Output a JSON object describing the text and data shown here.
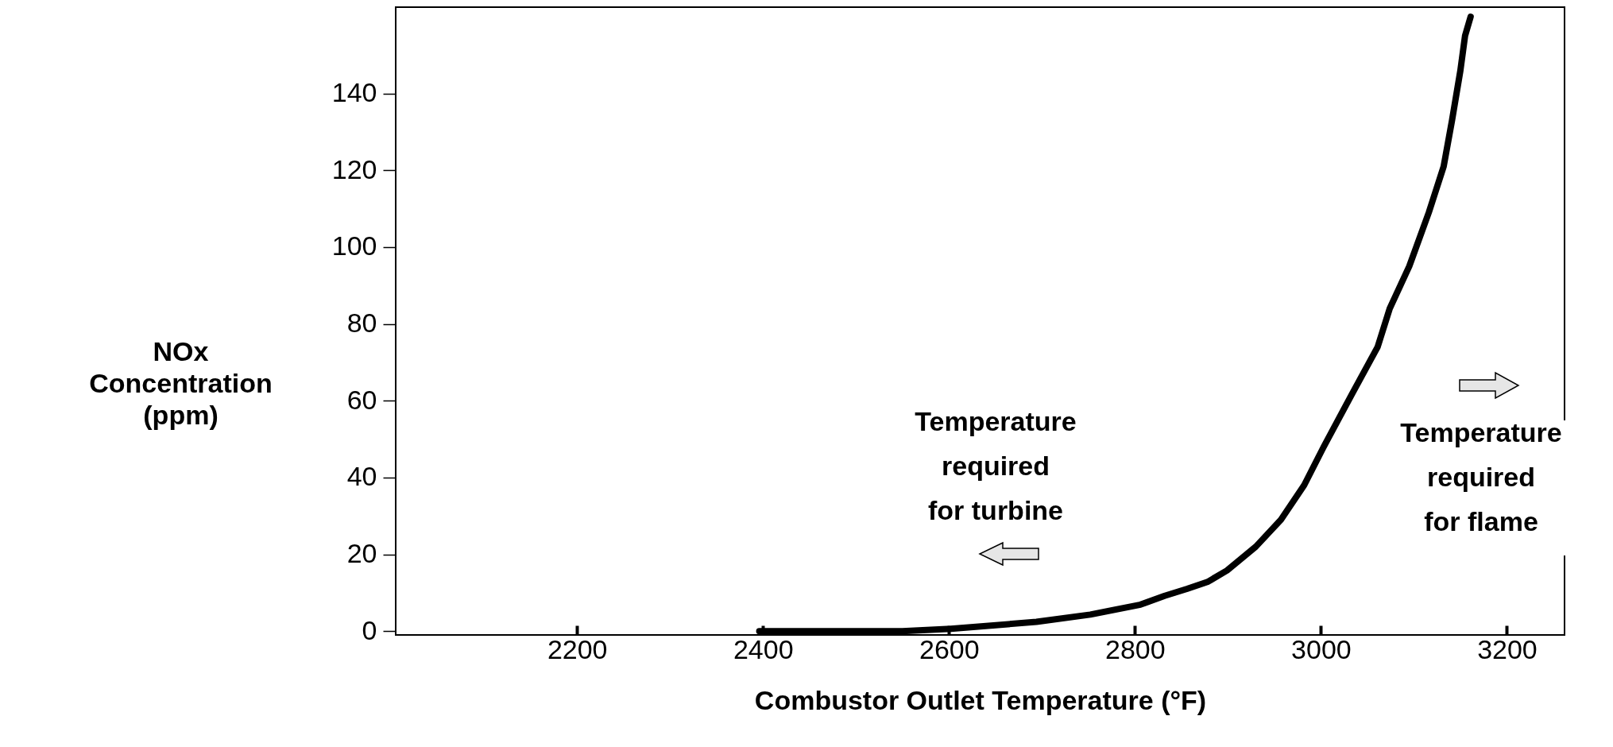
{
  "chart_data": {
    "type": "line",
    "xlabel": "Combustor Outlet    Temperature (°F)",
    "ylabel": "NOx\nConcentration\n(ppm)",
    "x": [
      2396,
      2437,
      2550,
      2602,
      2694,
      2752,
      2806,
      2832,
      2856,
      2878,
      2899,
      2930,
      2957,
      2982,
      3003,
      3034,
      3061,
      3074,
      3095,
      3116,
      3132,
      3141,
      3150,
      3155,
      3161
    ],
    "series": [
      {
        "color": "#000000",
        "values": [
          0,
          0,
          0,
          0.6,
          2.4,
          4.3,
          6.9,
          9.2,
          11,
          12.8,
          15.8,
          22,
          29,
          38,
          48,
          62,
          74,
          84,
          95,
          109,
          121,
          133,
          146,
          155,
          160
        ]
      }
    ],
    "xlim": [
      2005,
      3262
    ],
    "ylim": [
      -1,
      162.5
    ],
    "xticks": [
      2200,
      2400,
      2600,
      2800,
      3000,
      3200
    ],
    "yticks": [
      0,
      20,
      40,
      60,
      80,
      100,
      120,
      140
    ],
    "grid": false,
    "marker": "none",
    "line_style": "solid",
    "annotations": [
      "Temperature\nrequired\nfor turbine",
      "Temperature\nrequired\nfor flame"
    ]
  }
}
